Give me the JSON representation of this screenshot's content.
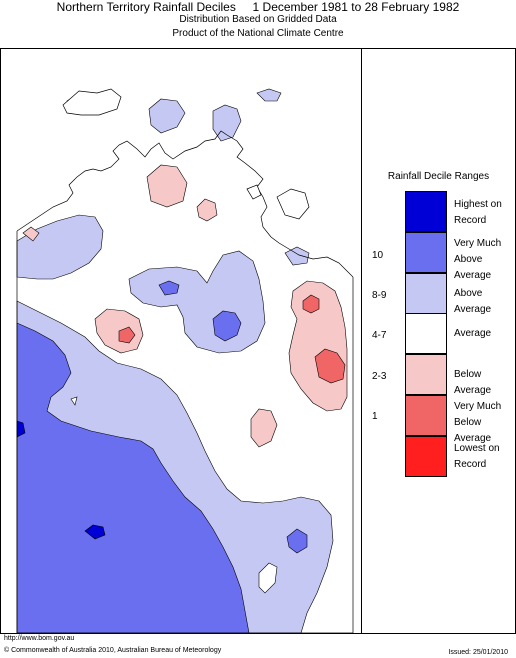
{
  "header": {
    "title": "Northern Territory Rainfall Deciles     1 December 1981 to 28 February 1982",
    "subtitle1": "Distribution Based on Gridded Data",
    "subtitle2": "Product of the National Climate Centre"
  },
  "legend": {
    "title": "Rainfall Decile Ranges",
    "items": [
      {
        "range": "",
        "label_line1": "Highest on",
        "label_line2": "Record",
        "color": "#0000d6"
      },
      {
        "range": "10",
        "label_line1": "Very Much",
        "label_line2": "Above Average",
        "color": "#6a6ff0"
      },
      {
        "range": "8-9",
        "label_line1": "Above Average",
        "label_line2": "",
        "color": "#c5c8f3"
      },
      {
        "range": "4-7",
        "label_line1": "Average",
        "label_line2": "",
        "color": "#ffffff"
      },
      {
        "range": "2-3",
        "label_line1": "Below Average",
        "label_line2": "",
        "color": "#f6c8c8"
      },
      {
        "range": "1",
        "label_line1": "Very Much",
        "label_line2": "Below Average",
        "color": "#f06666"
      },
      {
        "range": "",
        "label_line1": "Lowest on",
        "label_line2": "Record",
        "color": "#ff1f1f"
      }
    ]
  },
  "footer": {
    "url": "http://www.bom.gov.au",
    "copyright": "© Commonwealth of Australia 2010, Australian Bureau of Meteorology",
    "issued": "Issued: 25/01/2010"
  }
}
